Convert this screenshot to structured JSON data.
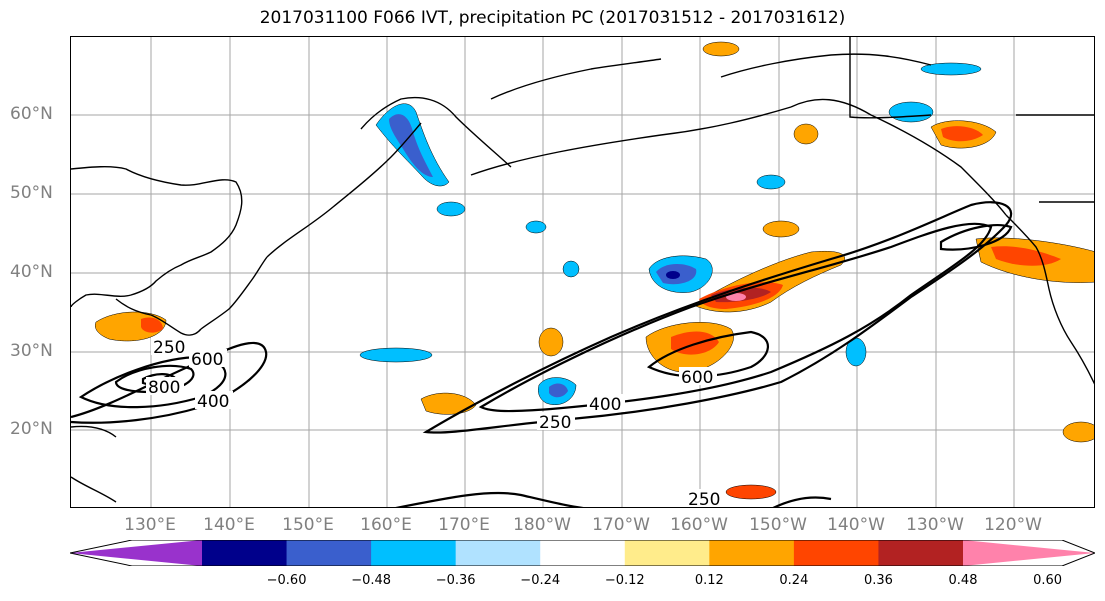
{
  "title": "2017031100 F066 IVT, precipitation PC (2017031512 - 2017031612)",
  "latitude_labels": [
    "60°N",
    "50°N",
    "40°N",
    "30°N",
    "20°N"
  ],
  "longitude_labels": [
    "130°E",
    "140°E",
    "150°E",
    "160°E",
    "170°E",
    "180°W",
    "170°W",
    "160°W",
    "150°W",
    "140°W",
    "130°W",
    "120°W"
  ],
  "contour_labels": [
    "250",
    "600",
    "800",
    "400",
    "250",
    "400",
    "600",
    "250"
  ],
  "colorbar": {
    "ticks": [
      "−0.60",
      "−0.48",
      "−0.36",
      "−0.24",
      "−0.12",
      "0.12",
      "0.24",
      "0.36",
      "0.48",
      "0.60"
    ],
    "colors": [
      "#9932cc",
      "#00008b",
      "#3a5fcd",
      "#00bfff",
      "#b0e2ff",
      "#ffffff",
      "#ffec8b",
      "#ffa500",
      "#ff4500",
      "#b22222",
      "#ff82ab"
    ]
  },
  "colors": {
    "coastline": "#000000",
    "gridline": "#808080",
    "ivt_contour": "#000000"
  }
}
